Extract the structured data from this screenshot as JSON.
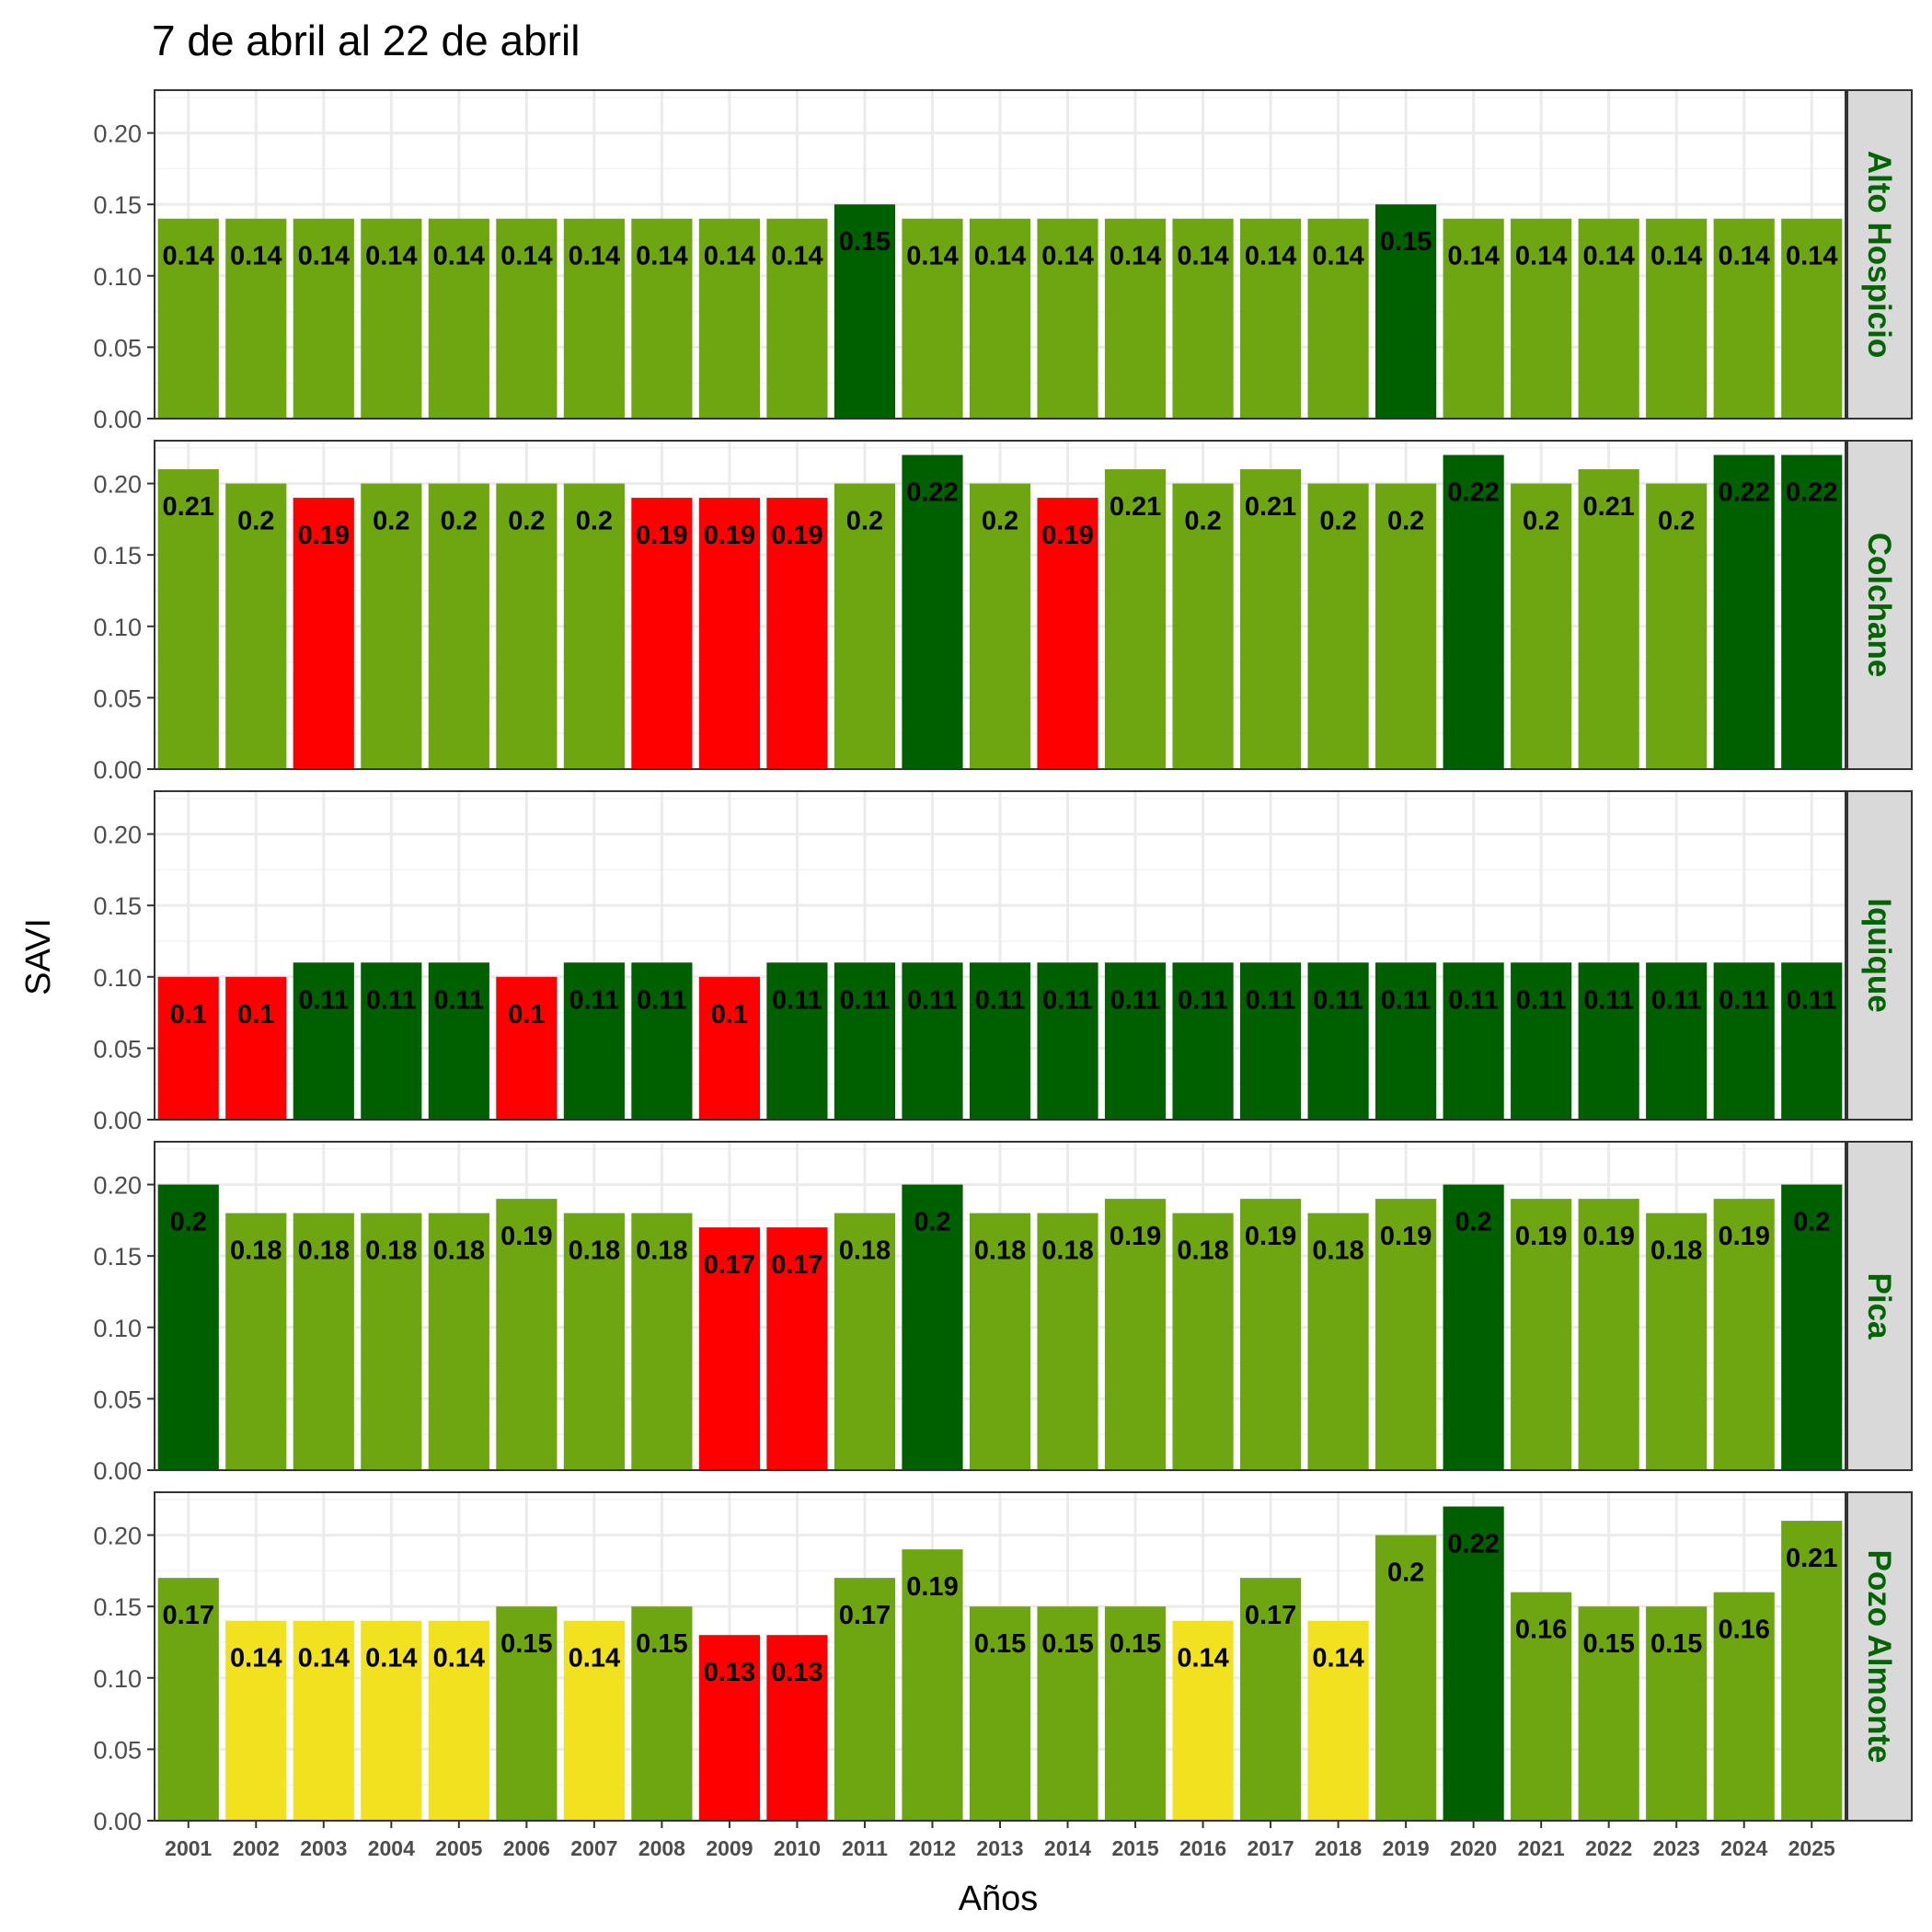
{
  "chart_data": {
    "type": "bar",
    "title": "7 de abril al 22 de abril",
    "xlabel": "Años",
    "ylabel": "SAVI",
    "ylim": [
      0,
      0.23
    ],
    "yticks": [
      "0.00",
      "0.05",
      "0.10",
      "0.15",
      "0.20"
    ],
    "grid": true,
    "legend": "none",
    "colors": {
      "red": "#ff0000",
      "yellow": "#f2e11e",
      "light_green": "#6ea612",
      "dark_green": "#006000",
      "strip_bg": "#d9d9d9",
      "strip_text": "#006400"
    },
    "categories": [
      "2001",
      "2002",
      "2003",
      "2004",
      "2005",
      "2006",
      "2007",
      "2008",
      "2009",
      "2010",
      "2011",
      "2012",
      "2013",
      "2014",
      "2015",
      "2016",
      "2017",
      "2018",
      "2019",
      "2020",
      "2021",
      "2022",
      "2023",
      "2024",
      "2025"
    ],
    "panels": [
      {
        "name": "Alto Hospicio",
        "values": [
          0.14,
          0.14,
          0.14,
          0.14,
          0.14,
          0.14,
          0.14,
          0.14,
          0.14,
          0.14,
          0.15,
          0.14,
          0.14,
          0.14,
          0.14,
          0.14,
          0.14,
          0.14,
          0.15,
          0.14,
          0.14,
          0.14,
          0.14,
          0.14,
          0.14
        ],
        "labels": [
          "0.14",
          "0.14",
          "0.14",
          "0.14",
          "0.14",
          "0.14",
          "0.14",
          "0.14",
          "0.14",
          "0.14",
          "0.15",
          "0.14",
          "0.14",
          "0.14",
          "0.14",
          "0.14",
          "0.14",
          "0.14",
          "0.15",
          "0.14",
          "0.14",
          "0.14",
          "0.14",
          "0.14",
          "0.14"
        ],
        "classes": [
          "light_green",
          "light_green",
          "light_green",
          "light_green",
          "light_green",
          "light_green",
          "light_green",
          "light_green",
          "light_green",
          "light_green",
          "dark_green",
          "light_green",
          "light_green",
          "light_green",
          "light_green",
          "light_green",
          "light_green",
          "light_green",
          "dark_green",
          "light_green",
          "light_green",
          "light_green",
          "light_green",
          "light_green",
          "light_green"
        ]
      },
      {
        "name": "Colchane",
        "values": [
          0.21,
          0.2,
          0.19,
          0.2,
          0.2,
          0.2,
          0.2,
          0.19,
          0.19,
          0.19,
          0.2,
          0.22,
          0.2,
          0.19,
          0.21,
          0.2,
          0.21,
          0.2,
          0.2,
          0.22,
          0.2,
          0.21,
          0.2,
          0.22,
          0.22
        ],
        "labels": [
          "0.21",
          "0.2",
          "0.19",
          "0.2",
          "0.2",
          "0.2",
          "0.2",
          "0.19",
          "0.19",
          "0.19",
          "0.2",
          "0.22",
          "0.2",
          "0.19",
          "0.21",
          "0.2",
          "0.21",
          "0.2",
          "0.2",
          "0.22",
          "0.2",
          "0.21",
          "0.2",
          "0.22",
          "0.22"
        ],
        "classes": [
          "light_green",
          "light_green",
          "red",
          "light_green",
          "light_green",
          "light_green",
          "light_green",
          "red",
          "red",
          "red",
          "light_green",
          "dark_green",
          "light_green",
          "red",
          "light_green",
          "light_green",
          "light_green",
          "light_green",
          "light_green",
          "dark_green",
          "light_green",
          "light_green",
          "light_green",
          "dark_green",
          "dark_green"
        ]
      },
      {
        "name": "Iquique",
        "values": [
          0.1,
          0.1,
          0.11,
          0.11,
          0.11,
          0.1,
          0.11,
          0.11,
          0.1,
          0.11,
          0.11,
          0.11,
          0.11,
          0.11,
          0.11,
          0.11,
          0.11,
          0.11,
          0.11,
          0.11,
          0.11,
          0.11,
          0.11,
          0.11,
          0.11
        ],
        "labels": [
          "0.1",
          "0.1",
          "0.11",
          "0.11",
          "0.11",
          "0.1",
          "0.11",
          "0.11",
          "0.1",
          "0.11",
          "0.11",
          "0.11",
          "0.11",
          "0.11",
          "0.11",
          "0.11",
          "0.11",
          "0.11",
          "0.11",
          "0.11",
          "0.11",
          "0.11",
          "0.11",
          "0.11",
          "0.11"
        ],
        "classes": [
          "red",
          "red",
          "dark_green",
          "dark_green",
          "dark_green",
          "red",
          "dark_green",
          "dark_green",
          "red",
          "dark_green",
          "dark_green",
          "dark_green",
          "dark_green",
          "dark_green",
          "dark_green",
          "dark_green",
          "dark_green",
          "dark_green",
          "dark_green",
          "dark_green",
          "dark_green",
          "dark_green",
          "dark_green",
          "dark_green",
          "dark_green"
        ]
      },
      {
        "name": "Pica",
        "values": [
          0.2,
          0.18,
          0.18,
          0.18,
          0.18,
          0.19,
          0.18,
          0.18,
          0.17,
          0.17,
          0.18,
          0.2,
          0.18,
          0.18,
          0.19,
          0.18,
          0.19,
          0.18,
          0.19,
          0.2,
          0.19,
          0.19,
          0.18,
          0.19,
          0.2
        ],
        "labels": [
          "0.2",
          "0.18",
          "0.18",
          "0.18",
          "0.18",
          "0.19",
          "0.18",
          "0.18",
          "0.17",
          "0.17",
          "0.18",
          "0.2",
          "0.18",
          "0.18",
          "0.19",
          "0.18",
          "0.19",
          "0.18",
          "0.19",
          "0.2",
          "0.19",
          "0.19",
          "0.18",
          "0.19",
          "0.2"
        ],
        "classes": [
          "dark_green",
          "light_green",
          "light_green",
          "light_green",
          "light_green",
          "light_green",
          "light_green",
          "light_green",
          "red",
          "red",
          "light_green",
          "dark_green",
          "light_green",
          "light_green",
          "light_green",
          "light_green",
          "light_green",
          "light_green",
          "light_green",
          "dark_green",
          "light_green",
          "light_green",
          "light_green",
          "light_green",
          "dark_green"
        ]
      },
      {
        "name": "Pozo Almonte",
        "values": [
          0.17,
          0.14,
          0.14,
          0.14,
          0.14,
          0.15,
          0.14,
          0.15,
          0.13,
          0.13,
          0.17,
          0.19,
          0.15,
          0.15,
          0.15,
          0.14,
          0.17,
          0.14,
          0.2,
          0.22,
          0.16,
          0.15,
          0.15,
          0.16,
          0.21
        ],
        "labels": [
          "0.17",
          "0.14",
          "0.14",
          "0.14",
          "0.14",
          "0.15",
          "0.14",
          "0.15",
          "0.13",
          "0.13",
          "0.17",
          "0.19",
          "0.15",
          "0.15",
          "0.15",
          "0.14",
          "0.17",
          "0.14",
          "0.2",
          "0.22",
          "0.16",
          "0.15",
          "0.15",
          "0.16",
          "0.21"
        ],
        "classes": [
          "light_green",
          "yellow",
          "yellow",
          "yellow",
          "yellow",
          "light_green",
          "yellow",
          "light_green",
          "red",
          "red",
          "light_green",
          "light_green",
          "light_green",
          "light_green",
          "light_green",
          "yellow",
          "light_green",
          "yellow",
          "light_green",
          "dark_green",
          "light_green",
          "light_green",
          "light_green",
          "light_green",
          "light_green"
        ]
      }
    ]
  }
}
